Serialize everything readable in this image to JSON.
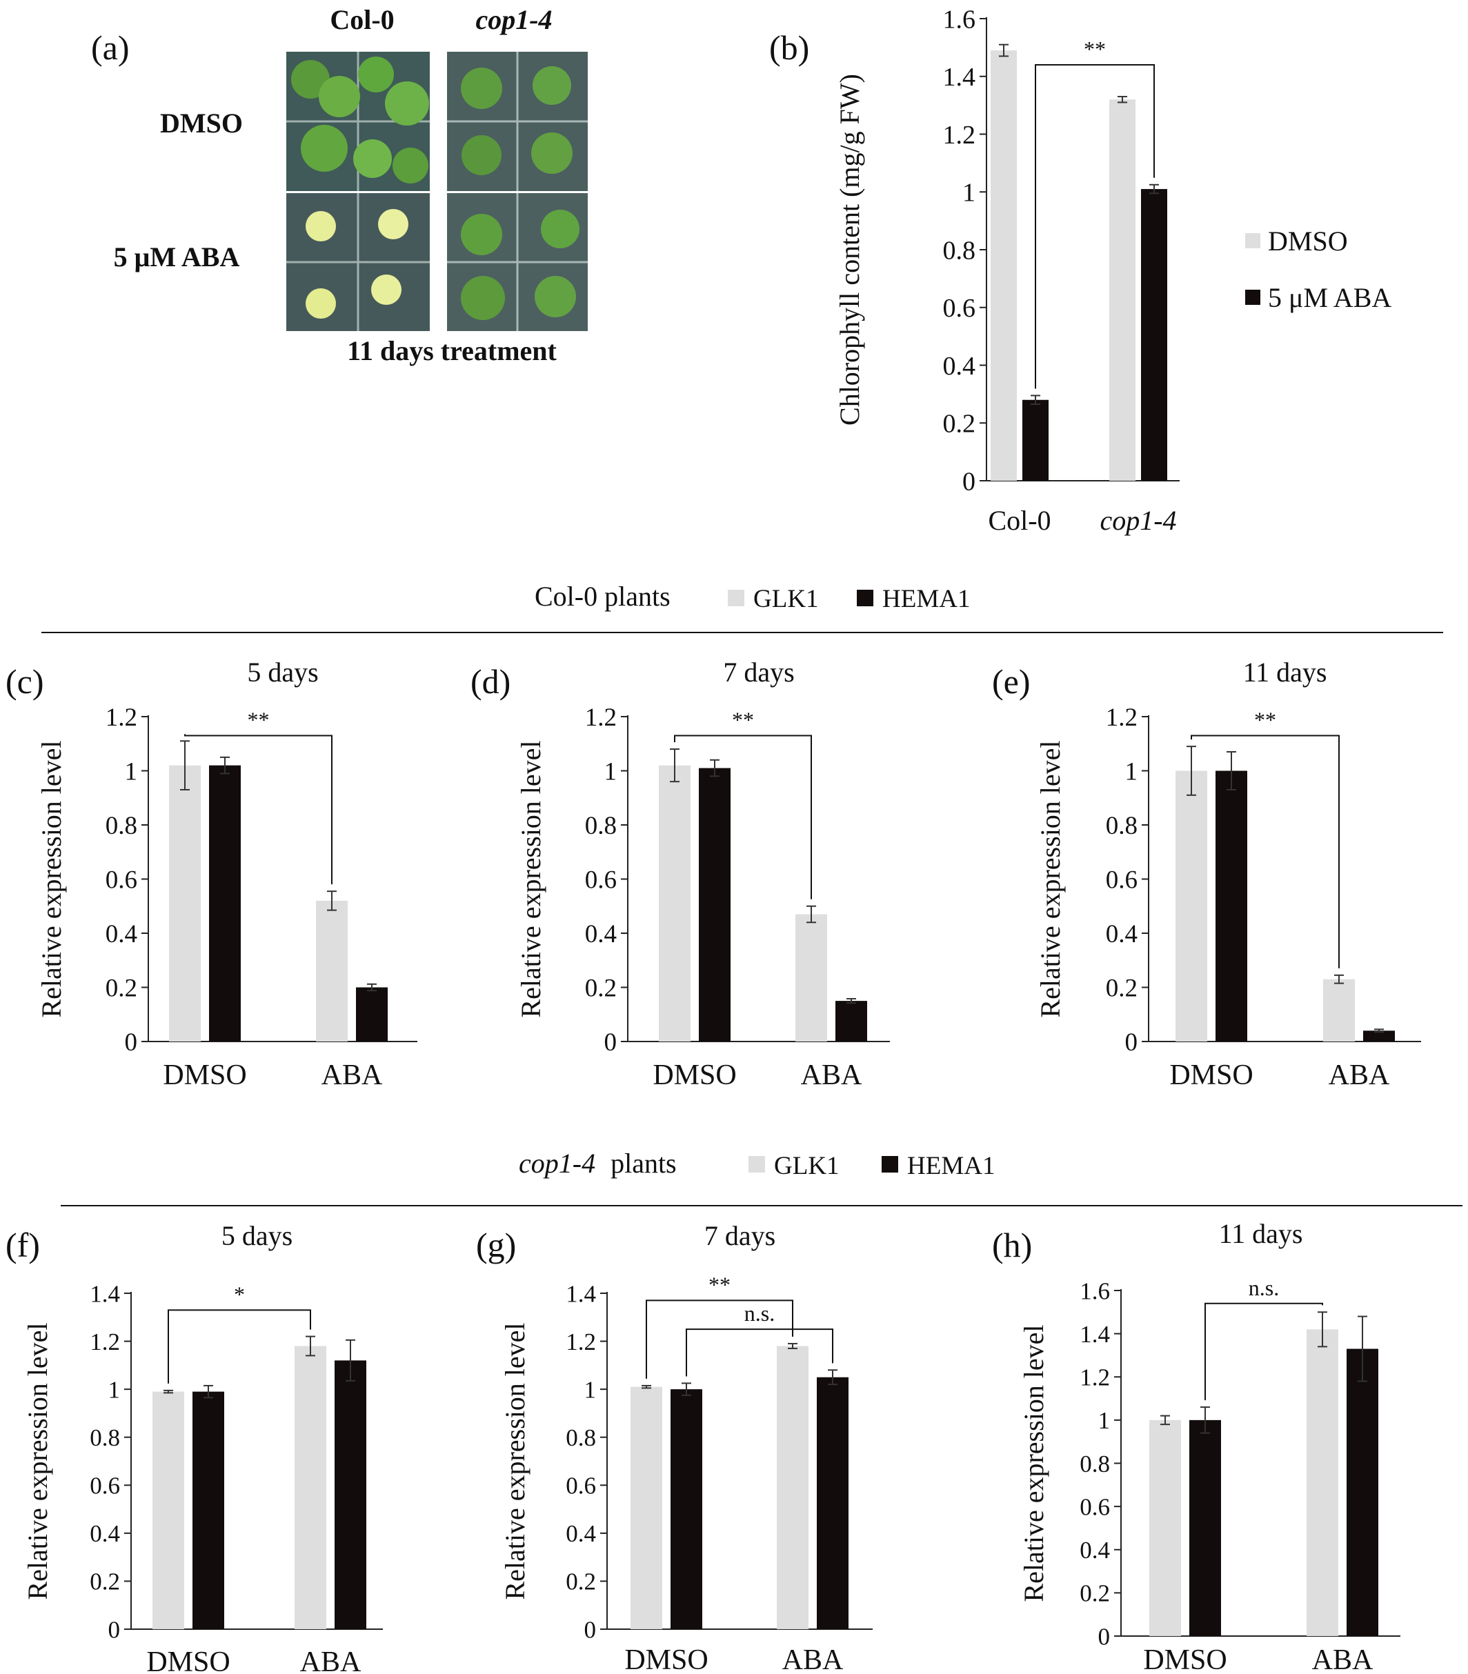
{
  "colors": {
    "light": "#dedede",
    "dark": "#120c0c",
    "axis": "#222222",
    "err": "#333333"
  },
  "panel_a": {
    "letter": "(a)",
    "col_labels": [
      "Col-0",
      "cop1-4"
    ],
    "row_labels": [
      "DMSO",
      "5 μM ABA"
    ],
    "caption": "11 days treatment"
  },
  "section_labels": {
    "col0": {
      "title": "Col-0 plants",
      "legend": [
        "GLK1",
        "HEMA1"
      ]
    },
    "cop1": {
      "title_italic": "cop1-4",
      "title_rest": "plants",
      "legend": [
        "GLK1",
        "HEMA1"
      ]
    }
  },
  "legend_b": [
    "DMSO",
    "5 μM ABA"
  ],
  "chart_data": [
    {
      "letter": "(b)",
      "type": "bar",
      "title": "",
      "ylabel": "Chlorophyll content (mg/g FW)",
      "categories": [
        "Col-0",
        "cop1-4"
      ],
      "italic_categories": [
        false,
        true
      ],
      "ylim": [
        0,
        1.6
      ],
      "yticks": [
        "0",
        "0.2",
        "0.4",
        "0.6",
        "0.8",
        "1",
        "1.2",
        "1.4",
        "1.6"
      ],
      "series": [
        {
          "name": "DMSO",
          "values": [
            1.49,
            1.32
          ],
          "errors": [
            0.02,
            0.01
          ]
        },
        {
          "name": "5 μM ABA",
          "values": [
            0.28,
            1.01
          ],
          "errors": [
            0.015,
            0.015
          ]
        }
      ],
      "annotations": [
        {
          "text": "**",
          "between": "Col-0 5 μM ABA vs cop1-4 5 μM ABA"
        }
      ]
    },
    {
      "letter": "(c)",
      "type": "bar",
      "title": "5 days",
      "ylabel": "Relative expression level",
      "categories": [
        "DMSO",
        "ABA"
      ],
      "ylim": [
        0,
        1.2
      ],
      "yticks": [
        "0",
        "0.2",
        "0.4",
        "0.6",
        "0.8",
        "1",
        "1.2"
      ],
      "series": [
        {
          "name": "GLK1",
          "values": [
            1.02,
            0.52
          ],
          "errors": [
            0.09,
            0.035
          ]
        },
        {
          "name": "HEMA1",
          "values": [
            1.02,
            0.2
          ],
          "errors": [
            0.03,
            0.012
          ]
        }
      ],
      "annotations": [
        {
          "text": "**"
        }
      ]
    },
    {
      "letter": "(d)",
      "type": "bar",
      "title": "7 days",
      "ylabel": "Relative expression level",
      "categories": [
        "DMSO",
        "ABA"
      ],
      "ylim": [
        0,
        1.2
      ],
      "yticks": [
        "0",
        "0.2",
        "0.4",
        "0.6",
        "0.8",
        "1",
        "1.2"
      ],
      "series": [
        {
          "name": "GLK1",
          "values": [
            1.02,
            0.47
          ],
          "errors": [
            0.06,
            0.03
          ]
        },
        {
          "name": "HEMA1",
          "values": [
            1.01,
            0.15
          ],
          "errors": [
            0.03,
            0.008
          ]
        }
      ],
      "annotations": [
        {
          "text": "**"
        }
      ]
    },
    {
      "letter": "(e)",
      "type": "bar",
      "title": "11 days",
      "ylabel": "Relative expression level",
      "categories": [
        "DMSO",
        "ABA"
      ],
      "ylim": [
        0,
        1.2
      ],
      "yticks": [
        "0",
        "0.2",
        "0.4",
        "0.6",
        "0.8",
        "1",
        "1.2"
      ],
      "series": [
        {
          "name": "GLK1",
          "values": [
            1.0,
            0.23
          ],
          "errors": [
            0.09,
            0.015
          ]
        },
        {
          "name": "HEMA1",
          "values": [
            1.0,
            0.04
          ],
          "errors": [
            0.07,
            0.005
          ]
        }
      ],
      "annotations": [
        {
          "text": "**"
        }
      ]
    },
    {
      "letter": "(f)",
      "type": "bar",
      "title": "5 days",
      "ylabel": "Relative expression level",
      "categories": [
        "DMSO",
        "ABA"
      ],
      "ylim": [
        0,
        1.4
      ],
      "yticks": [
        "0",
        "0.2",
        "0.4",
        "0.6",
        "0.8",
        "1",
        "1.2",
        "1.4"
      ],
      "series": [
        {
          "name": "GLK1",
          "values": [
            0.99,
            1.18
          ],
          "errors": [
            0.005,
            0.04
          ]
        },
        {
          "name": "HEMA1",
          "values": [
            0.99,
            1.12
          ],
          "errors": [
            0.025,
            0.085
          ]
        }
      ],
      "annotations": [
        {
          "text": "*"
        }
      ]
    },
    {
      "letter": "(g)",
      "type": "bar",
      "title": "7 days",
      "ylabel": "Relative expression level",
      "categories": [
        "DMSO",
        "ABA"
      ],
      "ylim": [
        0,
        1.4
      ],
      "yticks": [
        "0",
        "0.2",
        "0.4",
        "0.6",
        "0.8",
        "1",
        "1.2",
        "1.4"
      ],
      "series": [
        {
          "name": "GLK1",
          "values": [
            1.01,
            1.18
          ],
          "errors": [
            0.005,
            0.01
          ]
        },
        {
          "name": "HEMA1",
          "values": [
            1.0,
            1.05
          ],
          "errors": [
            0.025,
            0.03
          ]
        }
      ],
      "annotations": [
        {
          "text": "**"
        },
        {
          "text": "n.s."
        }
      ]
    },
    {
      "letter": "(h)",
      "type": "bar",
      "title": "11 days",
      "ylabel": "Relative expression level",
      "categories": [
        "DMSO",
        "ABA"
      ],
      "ylim": [
        0,
        1.6
      ],
      "yticks": [
        "0",
        "0.2",
        "0.4",
        "0.6",
        "0.8",
        "1",
        "1.2",
        "1.4",
        "1.6"
      ],
      "series": [
        {
          "name": "GLK1",
          "values": [
            1.0,
            1.42
          ],
          "errors": [
            0.02,
            0.08
          ]
        },
        {
          "name": "HEMA1",
          "values": [
            1.0,
            1.33
          ],
          "errors": [
            0.06,
            0.15
          ]
        }
      ],
      "annotations": [
        {
          "text": "n.s."
        }
      ]
    }
  ]
}
